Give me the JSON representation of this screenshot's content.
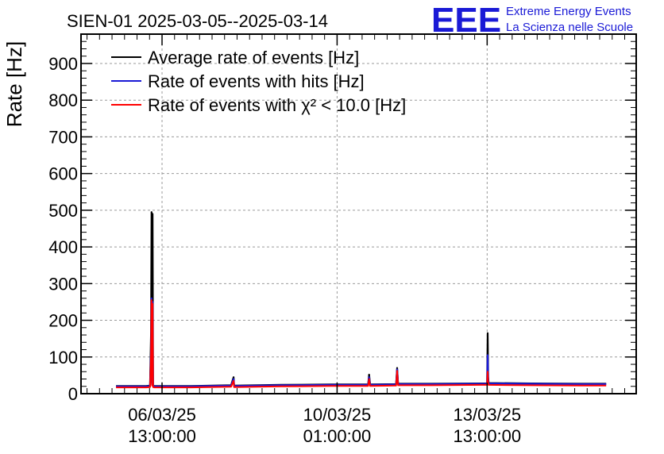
{
  "chart_data": {
    "type": "line",
    "title": "SIEN-01 2025-03-05--2025-03-14",
    "ylabel": "Rate [Hz]",
    "xlabel": "",
    "ylim": [
      0,
      980
    ],
    "yticks": [
      0,
      100,
      200,
      300,
      400,
      500,
      600,
      700,
      800,
      900
    ],
    "x_range_days": [
      0,
      11.1
    ],
    "xticks": [
      {
        "t": 1.62,
        "date": "06/03/25",
        "time": "13:00:00"
      },
      {
        "t": 5.12,
        "date": "10/03/25",
        "time": "01:00:00"
      },
      {
        "t": 8.12,
        "date": "13/03/25",
        "time": "13:00:00"
      }
    ],
    "grid": true,
    "legend": "top-left",
    "series": [
      {
        "name": "Average rate of events [Hz]",
        "color": "#000000",
        "points": [
          [
            0.7,
            21
          ],
          [
            1.3,
            21
          ],
          [
            1.38,
            22
          ],
          [
            1.4,
            170
          ],
          [
            1.41,
            495
          ],
          [
            1.42,
            30
          ],
          [
            1.43,
            490
          ],
          [
            1.44,
            22
          ],
          [
            1.46,
            21
          ],
          [
            2.2,
            21
          ],
          [
            3.0,
            23
          ],
          [
            3.05,
            45
          ],
          [
            3.06,
            22
          ],
          [
            4.0,
            24
          ],
          [
            5.0,
            25
          ],
          [
            5.74,
            25
          ],
          [
            5.76,
            52
          ],
          [
            5.78,
            25
          ],
          [
            6.3,
            26
          ],
          [
            6.32,
            70
          ],
          [
            6.34,
            27
          ],
          [
            7.0,
            27
          ],
          [
            8.0,
            28
          ],
          [
            8.12,
            28
          ],
          [
            8.13,
            165
          ],
          [
            8.14,
            45
          ],
          [
            8.15,
            29
          ],
          [
            9.0,
            28
          ],
          [
            10.0,
            27
          ],
          [
            10.5,
            27
          ]
        ]
      },
      {
        "name": "Rate of events with hits [Hz]",
        "color": "#1a1ad6",
        "points": [
          [
            0.7,
            20
          ],
          [
            1.3,
            20
          ],
          [
            1.38,
            21
          ],
          [
            1.4,
            120
          ],
          [
            1.41,
            260
          ],
          [
            1.42,
            25
          ],
          [
            1.43,
            250
          ],
          [
            1.44,
            21
          ],
          [
            1.46,
            20
          ],
          [
            2.2,
            20
          ],
          [
            3.0,
            22
          ],
          [
            3.05,
            40
          ],
          [
            3.06,
            21
          ],
          [
            4.0,
            23
          ],
          [
            5.0,
            24
          ],
          [
            5.74,
            24
          ],
          [
            5.76,
            45
          ],
          [
            5.78,
            24
          ],
          [
            6.3,
            25
          ],
          [
            6.32,
            66
          ],
          [
            6.34,
            26
          ],
          [
            7.0,
            26
          ],
          [
            8.0,
            27
          ],
          [
            8.12,
            27
          ],
          [
            8.13,
            105
          ],
          [
            8.14,
            40
          ],
          [
            8.15,
            28
          ],
          [
            9.0,
            27
          ],
          [
            10.0,
            26
          ],
          [
            10.5,
            26
          ]
        ]
      },
      {
        "name": "Rate of events with χ² < 10.0 [Hz]",
        "color": "#ff0000",
        "points": [
          [
            0.7,
            17
          ],
          [
            1.3,
            17
          ],
          [
            1.38,
            18
          ],
          [
            1.4,
            110
          ],
          [
            1.41,
            255
          ],
          [
            1.42,
            22
          ],
          [
            1.43,
            245
          ],
          [
            1.44,
            18
          ],
          [
            1.46,
            17
          ],
          [
            2.2,
            17
          ],
          [
            3.0,
            19
          ],
          [
            3.05,
            35
          ],
          [
            3.06,
            18
          ],
          [
            4.0,
            20
          ],
          [
            5.0,
            21
          ],
          [
            5.74,
            21
          ],
          [
            5.76,
            40
          ],
          [
            5.78,
            21
          ],
          [
            6.3,
            22
          ],
          [
            6.32,
            62
          ],
          [
            6.34,
            23
          ],
          [
            7.0,
            23
          ],
          [
            8.0,
            24
          ],
          [
            8.12,
            24
          ],
          [
            8.13,
            60
          ],
          [
            8.14,
            30
          ],
          [
            8.15,
            24
          ],
          [
            9.0,
            23
          ],
          [
            10.0,
            22
          ],
          [
            10.5,
            22
          ]
        ]
      }
    ]
  },
  "logo": {
    "text": "EEE",
    "line1": "Extreme Energy Events",
    "line2": "La Scienza nelle Scuole"
  }
}
